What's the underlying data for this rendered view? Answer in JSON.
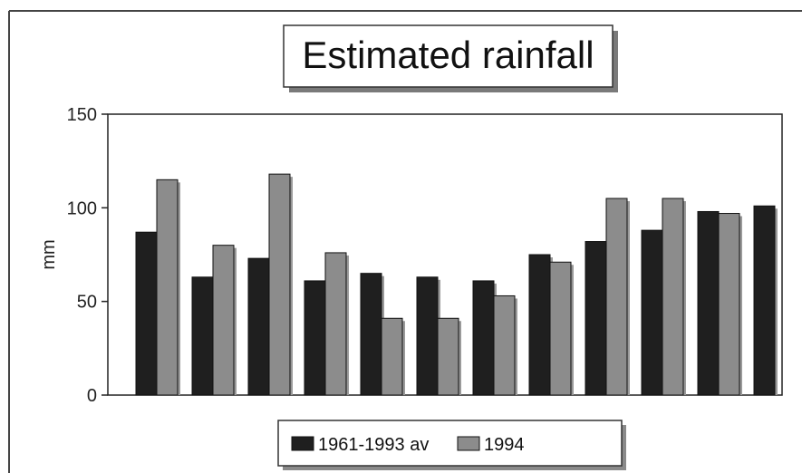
{
  "chart_data": {
    "type": "bar",
    "title": "Estimated rainfall",
    "ylabel": "mm",
    "xlabel": "",
    "ylim": [
      0,
      150
    ],
    "yticks": [
      0,
      50,
      100,
      150
    ],
    "grid": false,
    "legend_position": "bottom",
    "categories": [
      "",
      "",
      "",
      "",
      "",
      "",
      "",
      "",
      "",
      "",
      "",
      ""
    ],
    "series": [
      {
        "name": "1961-1993 av",
        "color": "#1f1f1f",
        "values": [
          87,
          63,
          73,
          61,
          65,
          63,
          61,
          75,
          82,
          88,
          98,
          101
        ]
      },
      {
        "name": "1994",
        "color": "#8c8c8c",
        "values": [
          115,
          80,
          118,
          76,
          41,
          41,
          53,
          71,
          105,
          105,
          97,
          null
        ]
      }
    ],
    "colors": {
      "background": "#ffffff",
      "axis": "#222222",
      "frame": "#444444",
      "shadow": "#888888"
    }
  }
}
